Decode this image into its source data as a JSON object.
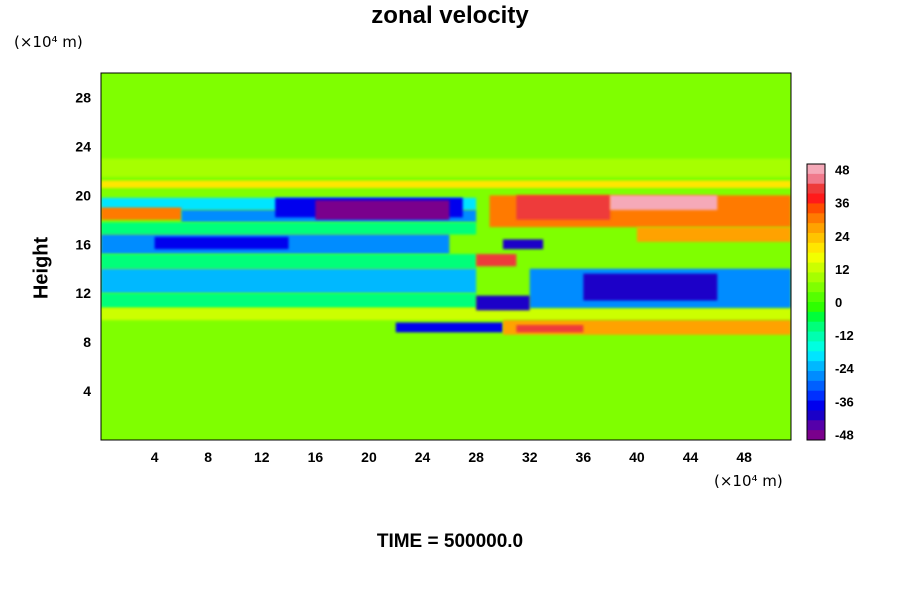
{
  "chart_data": {
    "type": "heatmap",
    "title": "zonal velocity",
    "ylabel": "Height",
    "xlabel": "",
    "x_unit": "(×10⁴ m)",
    "y_unit": "(×10⁴ m)",
    "footer": "TIME = 500000.0",
    "xlim": [
      0,
      51.5
    ],
    "ylim": [
      0,
      30
    ],
    "x_ticks": [
      4,
      8,
      12,
      16,
      20,
      24,
      28,
      32,
      36,
      40,
      44,
      48
    ],
    "y_ticks": [
      4,
      8,
      12,
      16,
      20,
      24,
      28
    ],
    "colorbar": {
      "range": [
        -50,
        50
      ],
      "ticks": [
        48,
        36,
        24,
        12,
        0,
        -12,
        -24,
        -36,
        -48
      ],
      "colors": [
        "#f5a9b8",
        "#f07a8c",
        "#ee3b3b",
        "#ff1a1a",
        "#ff4d00",
        "#ff7a00",
        "#ffa200",
        "#ffc400",
        "#ffe600",
        "#f2ff00",
        "#ccff00",
        "#a6ff00",
        "#7fff00",
        "#55ff00",
        "#2eff00",
        "#00ff3a",
        "#00ff7a",
        "#00ffb0",
        "#00ffe0",
        "#00e5ff",
        "#00b8ff",
        "#008cff",
        "#0060ff",
        "#0030ff",
        "#0000ee",
        "#1a00c8",
        "#5500aa",
        "#7a008c"
      ]
    },
    "regions": [
      {
        "x0": 0,
        "x1": 51.5,
        "y0": 0,
        "y1": 30,
        "value": 4
      },
      {
        "x0": 0,
        "x1": 51.5,
        "y0": 21.5,
        "y1": 23,
        "value": 8
      },
      {
        "x0": 0,
        "x1": 51.5,
        "y0": 20.6,
        "y1": 21.2,
        "value": 18
      },
      {
        "x0": 0,
        "x1": 28,
        "y0": 18.8,
        "y1": 19.8,
        "value": -20
      },
      {
        "x0": 0,
        "x1": 6,
        "y0": 18.0,
        "y1": 19.0,
        "value": 30
      },
      {
        "x0": 6,
        "x1": 28,
        "y0": 17.8,
        "y1": 18.8,
        "value": -25
      },
      {
        "x0": 13,
        "x1": 27,
        "y0": 18.2,
        "y1": 19.8,
        "value": -38
      },
      {
        "x0": 16,
        "x1": 26,
        "y0": 18.0,
        "y1": 19.6,
        "value": -47
      },
      {
        "x0": 0,
        "x1": 28,
        "y0": 16.8,
        "y1": 17.8,
        "value": -10
      },
      {
        "x0": 0,
        "x1": 26,
        "y0": 15.2,
        "y1": 16.8,
        "value": -28
      },
      {
        "x0": 4,
        "x1": 14,
        "y0": 15.6,
        "y1": 16.6,
        "value": -38
      },
      {
        "x0": 0,
        "x1": 28,
        "y0": 14.0,
        "y1": 15.2,
        "value": -8
      },
      {
        "x0": 0,
        "x1": 28,
        "y0": 12.0,
        "y1": 14.0,
        "value": -22
      },
      {
        "x0": 0,
        "x1": 28,
        "y0": 10.8,
        "y1": 12.0,
        "value": -10
      },
      {
        "x0": 0,
        "x1": 51.5,
        "y0": 9.8,
        "y1": 10.8,
        "value": 14
      },
      {
        "x0": 22,
        "x1": 30,
        "y0": 8.8,
        "y1": 9.6,
        "value": -38
      },
      {
        "x0": 30,
        "x1": 51.5,
        "y0": 8.6,
        "y1": 9.8,
        "value": 26
      },
      {
        "x0": 31,
        "x1": 36,
        "y0": 8.8,
        "y1": 9.4,
        "value": 40
      },
      {
        "x0": 29,
        "x1": 51.5,
        "y0": 17.4,
        "y1": 20.0,
        "value": 30
      },
      {
        "x0": 31,
        "x1": 38,
        "y0": 18.0,
        "y1": 20.0,
        "value": 40
      },
      {
        "x0": 38,
        "x1": 46,
        "y0": 18.8,
        "y1": 20.0,
        "value": 48
      },
      {
        "x0": 40,
        "x1": 51.5,
        "y0": 16.2,
        "y1": 17.4,
        "value": 26
      },
      {
        "x0": 28,
        "x1": 31,
        "y0": 14.2,
        "y1": 15.2,
        "value": 40
      },
      {
        "x0": 30,
        "x1": 33,
        "y0": 15.6,
        "y1": 16.4,
        "value": -40
      },
      {
        "x0": 32,
        "x1": 51.5,
        "y0": 10.8,
        "y1": 14.0,
        "value": -28
      },
      {
        "x0": 36,
        "x1": 46,
        "y0": 11.4,
        "y1": 13.6,
        "value": -40
      },
      {
        "x0": 28,
        "x1": 32,
        "y0": 10.6,
        "y1": 11.8,
        "value": -42
      }
    ]
  }
}
